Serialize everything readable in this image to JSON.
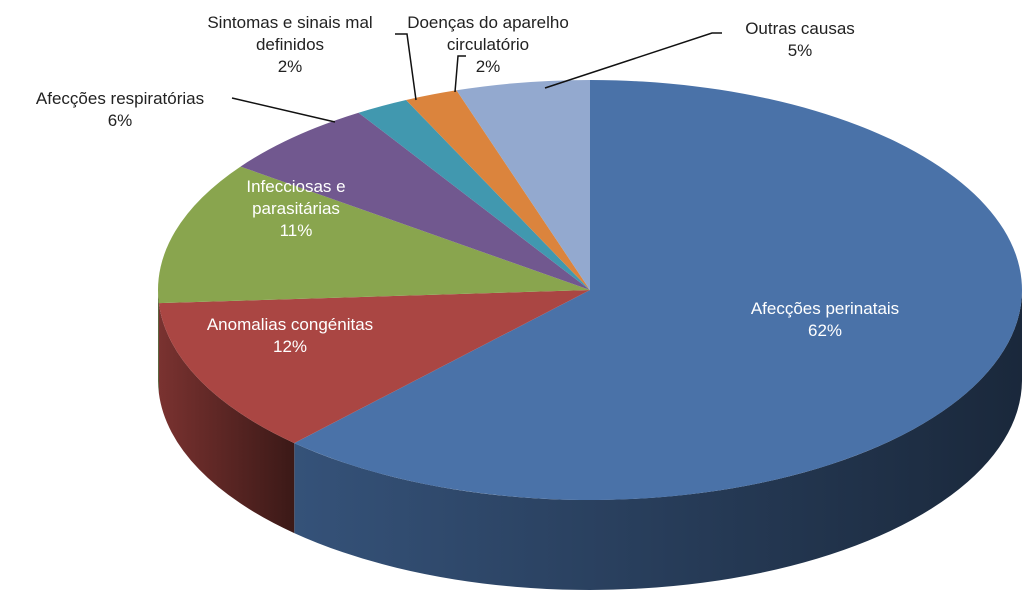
{
  "chart_data": {
    "type": "pie",
    "categories": [
      "Afecções perinatais",
      "Anomalias congénitas",
      "Infecciosas e parasitárias",
      "Afecções respiratórias",
      "Sintomas e sinais mal definidos",
      "Doenças do aparelho circulatório",
      "Outras causas"
    ],
    "values": [
      62,
      12,
      11,
      6,
      2,
      2,
      5
    ],
    "value_labels": [
      "62%",
      "12%",
      "11%",
      "6%",
      "2%",
      "2%",
      "5%"
    ],
    "colors": [
      "#4a72a8",
      "#aa4643",
      "#89a54e",
      "#71588f",
      "#4198af",
      "#db843d",
      "#93a9cf"
    ]
  }
}
